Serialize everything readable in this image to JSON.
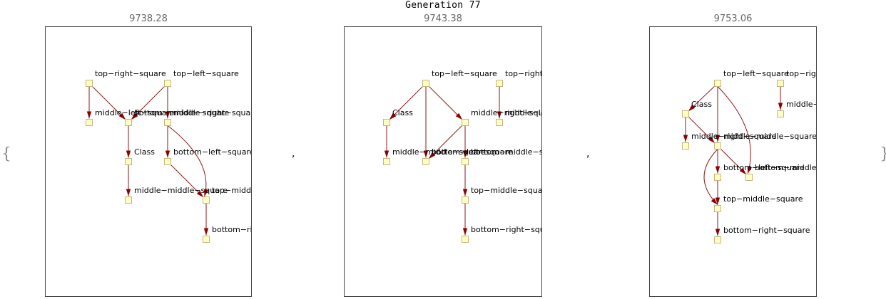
{
  "title": "Generation 77",
  "brace_open": "{",
  "brace_close": "}",
  "separator": ",",
  "colors": {
    "node_fill": "#ffffc4",
    "node_stroke": "#c8b478",
    "edge": "#8b1a1a",
    "frame": "#444444"
  },
  "graphs": [
    {
      "score": "9738.28",
      "nodes": [
        {
          "id": "top-right-square",
          "label": "top−right−square"
        },
        {
          "id": "top-left-square",
          "label": "top−left−square"
        },
        {
          "id": "middle-left-square",
          "label": "middle−left−square"
        },
        {
          "id": "bottom-middle-square",
          "label": "bottom−middle−square"
        },
        {
          "id": "middle-right-square",
          "label": "middle−right−square"
        },
        {
          "id": "class",
          "label": "Class"
        },
        {
          "id": "bottom-left-square",
          "label": "bottom−left−square"
        },
        {
          "id": "middle-middle-square",
          "label": "middle−middle−square"
        },
        {
          "id": "top-middle-square",
          "label": "top−middle−square"
        },
        {
          "id": "bottom-right-square",
          "label": "bottom−right−square"
        }
      ],
      "edges": [
        [
          "top-right-square",
          "middle-left-square"
        ],
        [
          "top-right-square",
          "bottom-middle-square"
        ],
        [
          "top-left-square",
          "bottom-middle-square"
        ],
        [
          "top-left-square",
          "middle-right-square"
        ],
        [
          "bottom-middle-square",
          "class"
        ],
        [
          "class",
          "middle-middle-square"
        ],
        [
          "middle-right-square",
          "bottom-left-square"
        ],
        [
          "middle-right-square",
          "top-middle-square"
        ],
        [
          "bottom-left-square",
          "top-middle-square"
        ],
        [
          "top-middle-square",
          "bottom-right-square"
        ]
      ]
    },
    {
      "score": "9743.38",
      "nodes": [
        {
          "id": "top-left-square",
          "label": "top−left−square"
        },
        {
          "id": "top-right-square",
          "label": "top−right−square"
        },
        {
          "id": "class",
          "label": "Class"
        },
        {
          "id": "middle-right-square",
          "label": "middle−right−square"
        },
        {
          "id": "middle-left-square",
          "label": "middle−left−square"
        },
        {
          "id": "middle-middle-square",
          "label": "middle−middle−square"
        },
        {
          "id": "bottom-left-square",
          "label": "bottom−left−square"
        },
        {
          "id": "bottom-middle-square",
          "label": "bottom−middle−square"
        },
        {
          "id": "top-middle-square",
          "label": "top−middle−square"
        },
        {
          "id": "bottom-right-square",
          "label": "bottom−right−square"
        }
      ],
      "edges": [
        [
          "top-left-square",
          "class"
        ],
        [
          "top-left-square",
          "middle-right-square"
        ],
        [
          "top-left-square",
          "bottom-left-square"
        ],
        [
          "top-right-square",
          "middle-left-square"
        ],
        [
          "class",
          "middle-middle-square"
        ],
        [
          "middle-right-square",
          "bottom-left-square"
        ],
        [
          "middle-right-square",
          "bottom-middle-square"
        ],
        [
          "bottom-middle-square",
          "top-middle-square"
        ],
        [
          "top-middle-square",
          "bottom-right-square"
        ]
      ]
    },
    {
      "score": "9753.06",
      "nodes": [
        {
          "id": "top-left-square",
          "label": "top−left−square"
        },
        {
          "id": "top-right-square",
          "label": "top−right−square"
        },
        {
          "id": "class",
          "label": "Class"
        },
        {
          "id": "middle-left-square",
          "label": "middle−left−square"
        },
        {
          "id": "middle-right-square",
          "label": "middle−right−square"
        },
        {
          "id": "middle-middle-square",
          "label": "middle−middle−square"
        },
        {
          "id": "bottom-left-square",
          "label": "bottom−left−square"
        },
        {
          "id": "bottom-middle-square",
          "label": "bottom−middle−square"
        },
        {
          "id": "top-middle-square",
          "label": "top−middle−square"
        },
        {
          "id": "bottom-right-square",
          "label": "bottom−right−square"
        }
      ],
      "edges": [
        [
          "top-left-square",
          "class"
        ],
        [
          "top-left-square",
          "middle-middle-square"
        ],
        [
          "top-left-square",
          "bottom-middle-square"
        ],
        [
          "top-right-square",
          "middle-left-square"
        ],
        [
          "class",
          "middle-right-square"
        ],
        [
          "class",
          "middle-middle-square"
        ],
        [
          "middle-middle-square",
          "bottom-left-square"
        ],
        [
          "middle-middle-square",
          "bottom-middle-square"
        ],
        [
          "middle-middle-square",
          "top-middle-square"
        ],
        [
          "bottom-left-square",
          "top-middle-square"
        ],
        [
          "top-middle-square",
          "bottom-right-square"
        ]
      ]
    }
  ]
}
